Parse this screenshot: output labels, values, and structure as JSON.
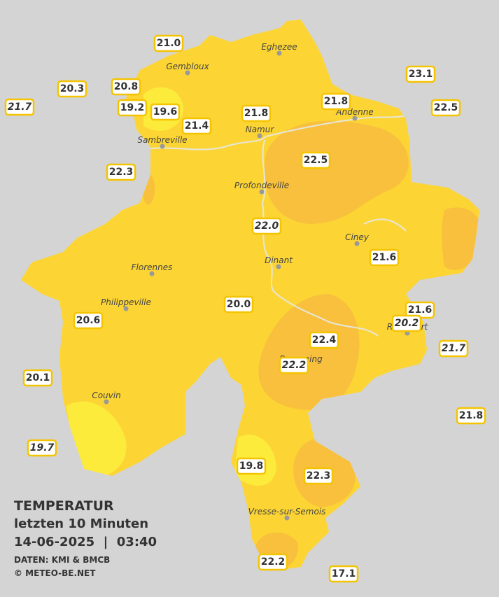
{
  "legend": {
    "title": "TEMPERATUR",
    "subtitle": "letzten 10 Minuten",
    "datetime": "14-06-2025  |  03:40",
    "source": "DATEN: KMI & BMCB",
    "copyright": "© METEO-BE.NET"
  },
  "towns": [
    "Eghezee",
    "Gembloux",
    "Andenne",
    "Namur",
    "Sambreville",
    "Profondeville",
    "Ciney",
    "Dinant",
    "Florennes",
    "Philippeville",
    "Rochefort",
    "Beauraing",
    "Couvin",
    "Vresse-sur-Semois"
  ],
  "stations": [
    {
      "value": "21.0"
    },
    {
      "value": "20.3"
    },
    {
      "value": "20.8"
    },
    {
      "value": "21.7",
      "italic": true
    },
    {
      "value": "19.2"
    },
    {
      "value": "19.6"
    },
    {
      "value": "21.4"
    },
    {
      "value": "21.8"
    },
    {
      "value": "21.8"
    },
    {
      "value": "23.1"
    },
    {
      "value": "22.5"
    },
    {
      "value": "22.3"
    },
    {
      "value": "22.5"
    },
    {
      "value": "22.0",
      "italic": true
    },
    {
      "value": "21.6"
    },
    {
      "value": "20.0"
    },
    {
      "value": "21.6"
    },
    {
      "value": "20.2",
      "italic": true
    },
    {
      "value": "20.6"
    },
    {
      "value": "22.4"
    },
    {
      "value": "22.2",
      "italic": true
    },
    {
      "value": "21.7",
      "italic": true
    },
    {
      "value": "20.1"
    },
    {
      "value": "21.8"
    },
    {
      "value": "19.7",
      "italic": true
    },
    {
      "value": "19.8"
    },
    {
      "value": "22.3"
    },
    {
      "value": "22.2"
    },
    {
      "value": "17.1"
    }
  ]
}
